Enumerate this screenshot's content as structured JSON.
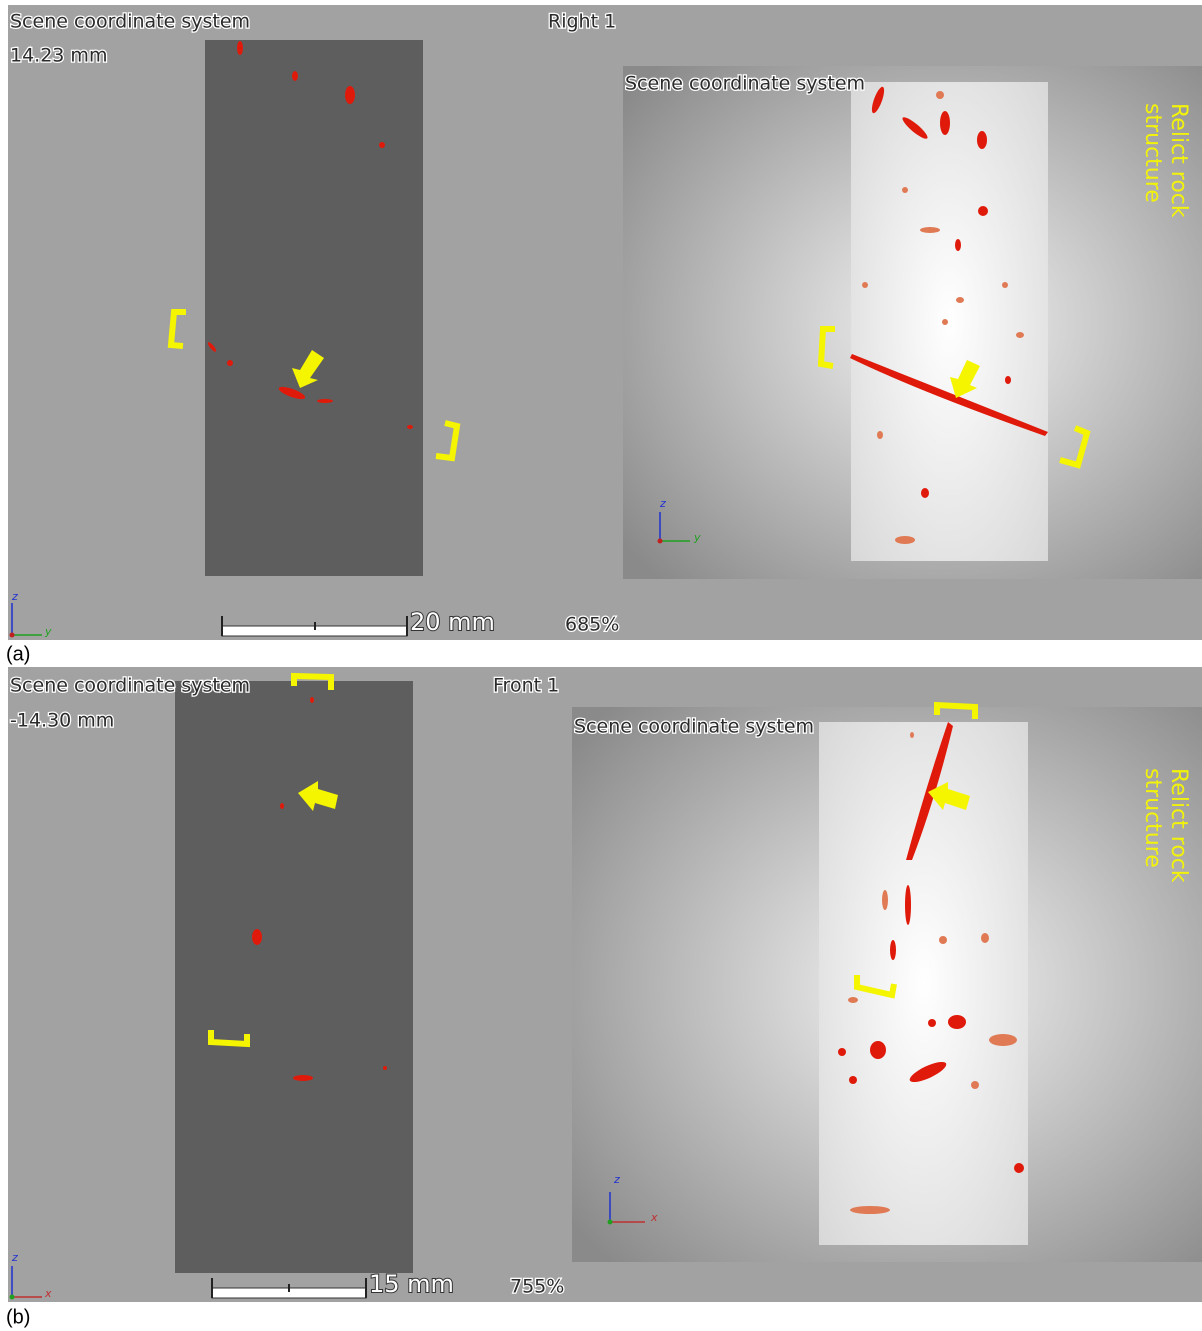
{
  "panels": [
    {
      "label": "(a)",
      "slice": {
        "title": "Scene coordinate system",
        "position": "14.23 mm",
        "view": "Right 1",
        "axes": {
          "vertical": "z",
          "horizontal": "y"
        },
        "scale_bar": "20 mm",
        "zoom": "685%"
      },
      "render": {
        "title": "Scene coordinate system",
        "annotation": [
          "Relict rock",
          "structure"
        ],
        "axes": {
          "vertical": "z",
          "horizontal": "y"
        }
      }
    },
    {
      "label": "(b)",
      "slice": {
        "title": "Scene coordinate system",
        "position": "-14.30 mm",
        "view": "Front 1",
        "axes": {
          "vertical": "z",
          "horizontal": "x"
        },
        "scale_bar": "15 mm",
        "zoom": "755%"
      },
      "render": {
        "title": "Scene coordinate system",
        "annotation": [
          "Relict rock",
          "structure"
        ],
        "axes": {
          "vertical": "z",
          "horizontal": "x"
        }
      }
    }
  ]
}
